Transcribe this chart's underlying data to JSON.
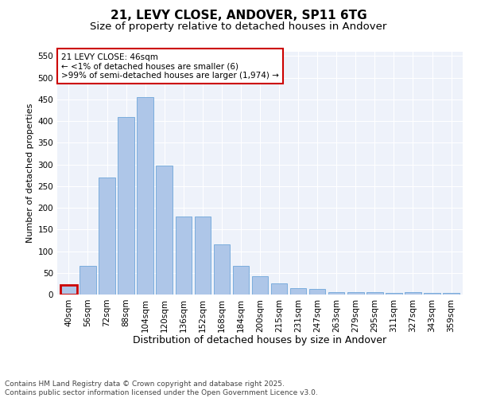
{
  "title": "21, LEVY CLOSE, ANDOVER, SP11 6TG",
  "subtitle": "Size of property relative to detached houses in Andover",
  "xlabel": "Distribution of detached houses by size in Andover",
  "ylabel": "Number of detached properties",
  "categories": [
    "40sqm",
    "56sqm",
    "72sqm",
    "88sqm",
    "104sqm",
    "120sqm",
    "136sqm",
    "152sqm",
    "168sqm",
    "184sqm",
    "200sqm",
    "215sqm",
    "231sqm",
    "247sqm",
    "263sqm",
    "279sqm",
    "295sqm",
    "311sqm",
    "327sqm",
    "343sqm",
    "359sqm"
  ],
  "values": [
    22,
    67,
    270,
    410,
    455,
    298,
    180,
    180,
    115,
    67,
    42,
    25,
    14,
    12,
    5,
    6,
    5,
    4,
    5,
    4,
    3
  ],
  "bar_color": "#aec6e8",
  "bar_edge_color": "#5b9bd5",
  "highlight_bar_index": 0,
  "highlight_edge_color": "#cc0000",
  "annotation_text": "21 LEVY CLOSE: 46sqm\n← <1% of detached houses are smaller (6)\n>99% of semi-detached houses are larger (1,974) →",
  "annotation_box_edge_color": "#cc0000",
  "ylim": [
    0,
    560
  ],
  "yticks": [
    0,
    50,
    100,
    150,
    200,
    250,
    300,
    350,
    400,
    450,
    500,
    550
  ],
  "background_color": "#eef2fa",
  "footer_text": "Contains HM Land Registry data © Crown copyright and database right 2025.\nContains public sector information licensed under the Open Government Licence v3.0.",
  "title_fontsize": 11,
  "subtitle_fontsize": 9.5,
  "xlabel_fontsize": 9,
  "ylabel_fontsize": 8,
  "tick_fontsize": 7.5,
  "annotation_fontsize": 7.5,
  "footer_fontsize": 6.5
}
